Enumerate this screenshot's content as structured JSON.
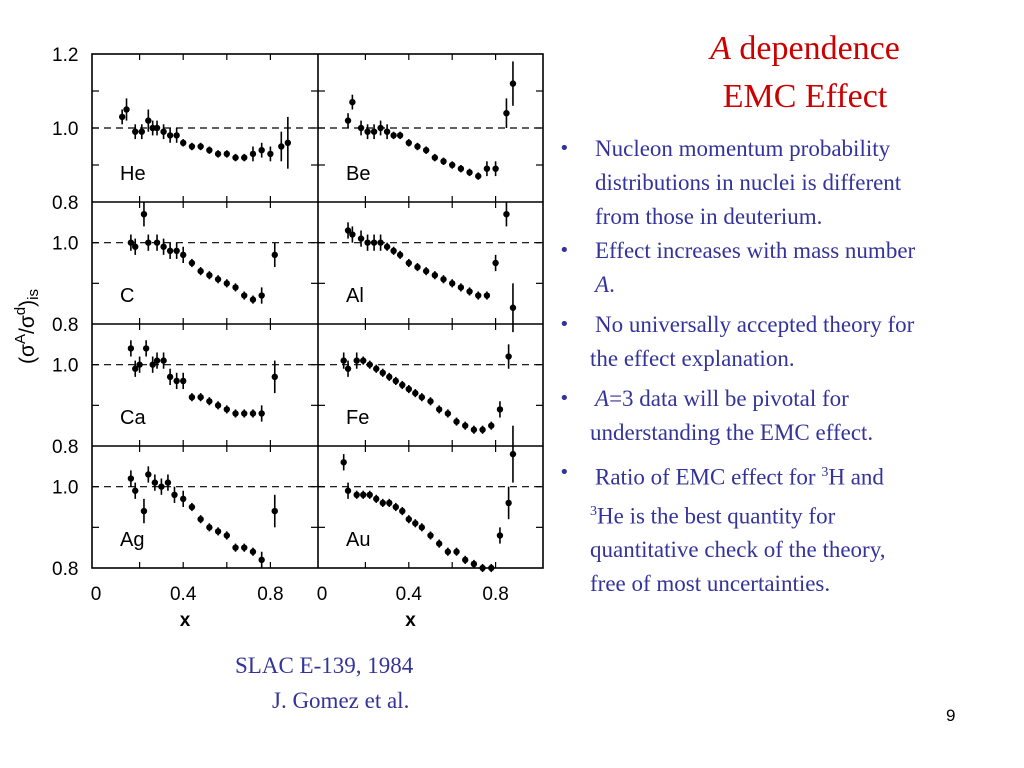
{
  "slide": {
    "title_italic": "A",
    "title_rest": " dependence",
    "title_line2": "EMC Effect",
    "page_number": "9",
    "caption": {
      "line1": "SLAC E-139, 1984",
      "line2": "J. Gomez et al."
    },
    "bullets": [
      {
        "lines": [
          "Nucleon momentum probability",
          "distributions in nuclei is different",
          "from those in deuterium."
        ]
      },
      {
        "lines": [
          "Effect increases with mass number"
        ],
        "cont_italic": "A",
        "cont_rest": "."
      },
      {
        "lines": [
          "No universally accepted theory for",
          "the effect explanation."
        ]
      },
      {
        "italic": "A",
        "rest": "=3 data will be pivotal for",
        "line2": "understanding the EMC effect."
      },
      {
        "line1a": "Ratio of EMC effect for ",
        "sup1": "3",
        "line1b": "H and",
        "sup2": "3",
        "line2b": "He is the best quantity for",
        "line3": "quantitative  check of the theory,",
        "line4": "free of most uncertainties."
      }
    ],
    "bullet_symbol": "•",
    "colors": {
      "title": "#cc0000",
      "text": "#33339a",
      "plot": "#000000"
    }
  },
  "chart_data": {
    "type": "scatter",
    "title": "",
    "ylabel": "(σA/σd)is",
    "xlabel": "x",
    "ylabel_parts": {
      "open": "(σ",
      "sup1": "A",
      "mid": "/σ",
      "sup2": "d",
      "close": ")",
      "sub": "is"
    },
    "xlim": [
      0,
      1.0
    ],
    "ylim": [
      0.8,
      1.2
    ],
    "x_ticks": [
      "0",
      "0.4",
      "0.8"
    ],
    "x_tick_values": [
      0,
      0.4,
      0.8
    ],
    "y_tick_labels_top": [
      "1.2",
      "1.0",
      "0.8"
    ],
    "y_tick_labels": [
      "1.0",
      "0.8"
    ],
    "reference_line": 1.0,
    "panels": [
      {
        "label": "He",
        "x": [
          0.12,
          0.14,
          0.18,
          0.21,
          0.24,
          0.26,
          0.28,
          0.31,
          0.34,
          0.37,
          0.4,
          0.44,
          0.48,
          0.52,
          0.56,
          0.6,
          0.64,
          0.68,
          0.72,
          0.76,
          0.8,
          0.85,
          0.88
        ],
        "y": [
          1.03,
          1.05,
          0.99,
          0.99,
          1.02,
          1.0,
          1.0,
          0.99,
          0.98,
          0.98,
          0.96,
          0.95,
          0.95,
          0.94,
          0.93,
          0.93,
          0.92,
          0.92,
          0.93,
          0.94,
          0.93,
          0.95,
          0.96
        ],
        "err": [
          0.02,
          0.03,
          0.02,
          0.02,
          0.03,
          0.02,
          0.02,
          0.02,
          0.02,
          0.02,
          0.01,
          0.01,
          0.01,
          0.01,
          0.01,
          0.01,
          0.01,
          0.01,
          0.02,
          0.02,
          0.02,
          0.04,
          0.07
        ]
      },
      {
        "label": "Be",
        "x": [
          0.12,
          0.14,
          0.18,
          0.21,
          0.24,
          0.27,
          0.3,
          0.33,
          0.36,
          0.4,
          0.44,
          0.48,
          0.52,
          0.56,
          0.6,
          0.64,
          0.68,
          0.72,
          0.76,
          0.8,
          0.85,
          0.88
        ],
        "y": [
          1.02,
          1.07,
          1.0,
          0.99,
          0.99,
          1.0,
          0.99,
          0.98,
          0.98,
          0.96,
          0.95,
          0.94,
          0.92,
          0.91,
          0.9,
          0.89,
          0.88,
          0.87,
          0.89,
          0.89,
          1.04,
          1.12
        ],
        "err": [
          0.02,
          0.02,
          0.02,
          0.02,
          0.02,
          0.02,
          0.02,
          0.01,
          0.01,
          0.01,
          0.01,
          0.01,
          0.01,
          0.01,
          0.01,
          0.01,
          0.01,
          0.01,
          0.02,
          0.02,
          0.04,
          0.06
        ]
      },
      {
        "label": "C",
        "x": [
          0.16,
          0.18,
          0.22,
          0.24,
          0.28,
          0.31,
          0.34,
          0.37,
          0.4,
          0.44,
          0.48,
          0.52,
          0.56,
          0.6,
          0.64,
          0.68,
          0.72,
          0.76,
          0.82
        ],
        "y": [
          1.0,
          0.99,
          1.07,
          1.0,
          1.0,
          0.99,
          0.98,
          0.98,
          0.97,
          0.95,
          0.93,
          0.92,
          0.91,
          0.9,
          0.89,
          0.87,
          0.86,
          0.87,
          0.97
        ],
        "err": [
          0.02,
          0.02,
          0.03,
          0.02,
          0.02,
          0.02,
          0.02,
          0.02,
          0.02,
          0.01,
          0.01,
          0.01,
          0.01,
          0.01,
          0.01,
          0.01,
          0.01,
          0.02,
          0.03
        ]
      },
      {
        "label": "Al",
        "x": [
          0.12,
          0.14,
          0.18,
          0.21,
          0.24,
          0.27,
          0.3,
          0.33,
          0.36,
          0.4,
          0.44,
          0.48,
          0.52,
          0.56,
          0.6,
          0.64,
          0.68,
          0.72,
          0.76,
          0.8,
          0.85
        ],
        "y": [
          1.03,
          1.02,
          1.01,
          1.0,
          1.0,
          1.0,
          0.99,
          0.98,
          0.97,
          0.95,
          0.94,
          0.93,
          0.92,
          0.91,
          0.9,
          0.89,
          0.88,
          0.87,
          0.87,
          0.95,
          1.07
        ],
        "err": [
          0.02,
          0.02,
          0.02,
          0.02,
          0.02,
          0.02,
          0.01,
          0.01,
          0.01,
          0.01,
          0.01,
          0.01,
          0.01,
          0.01,
          0.01,
          0.01,
          0.01,
          0.01,
          0.01,
          0.02,
          0.03
        ]
      },
      {
        "label": "Ca",
        "x": [
          0.16,
          0.18,
          0.2,
          0.23,
          0.26,
          0.28,
          0.31,
          0.34,
          0.37,
          0.4,
          0.44,
          0.48,
          0.52,
          0.56,
          0.6,
          0.64,
          0.68,
          0.72,
          0.76,
          0.82
        ],
        "y": [
          1.04,
          0.99,
          1.0,
          1.04,
          1.0,
          1.01,
          1.01,
          0.97,
          0.96,
          0.96,
          0.92,
          0.92,
          0.91,
          0.9,
          0.89,
          0.88,
          0.88,
          0.88,
          0.88,
          0.97
        ],
        "err": [
          0.02,
          0.02,
          0.02,
          0.02,
          0.02,
          0.02,
          0.02,
          0.02,
          0.02,
          0.02,
          0.01,
          0.01,
          0.01,
          0.01,
          0.01,
          0.01,
          0.01,
          0.01,
          0.02,
          0.04
        ]
      },
      {
        "label": "Fe",
        "x": [
          0.1,
          0.12,
          0.16,
          0.19,
          0.22,
          0.25,
          0.28,
          0.31,
          0.34,
          0.37,
          0.4,
          0.43,
          0.46,
          0.5,
          0.54,
          0.58,
          0.62,
          0.66,
          0.7,
          0.74,
          0.78,
          0.82,
          0.86,
          0.88
        ],
        "y": [
          1.01,
          0.99,
          1.01,
          1.01,
          1.0,
          0.99,
          0.98,
          0.97,
          0.96,
          0.95,
          0.94,
          0.93,
          0.92,
          0.91,
          0.89,
          0.88,
          0.86,
          0.85,
          0.84,
          0.84,
          0.85,
          0.89,
          1.02,
          1.14
        ],
        "err": [
          0.02,
          0.02,
          0.02,
          0.01,
          0.01,
          0.01,
          0.01,
          0.01,
          0.01,
          0.01,
          0.01,
          0.01,
          0.01,
          0.01,
          0.01,
          0.01,
          0.01,
          0.01,
          0.01,
          0.01,
          0.01,
          0.02,
          0.03,
          0.06
        ]
      },
      {
        "label": "Ag",
        "x": [
          0.16,
          0.18,
          0.22,
          0.24,
          0.27,
          0.3,
          0.33,
          0.36,
          0.4,
          0.44,
          0.48,
          0.52,
          0.56,
          0.6,
          0.64,
          0.68,
          0.72,
          0.76,
          0.82
        ],
        "y": [
          1.02,
          0.99,
          0.94,
          1.03,
          1.01,
          1.0,
          1.01,
          0.98,
          0.97,
          0.95,
          0.92,
          0.9,
          0.89,
          0.88,
          0.85,
          0.85,
          0.84,
          0.82,
          0.94
        ],
        "err": [
          0.02,
          0.02,
          0.03,
          0.02,
          0.02,
          0.02,
          0.02,
          0.02,
          0.02,
          0.01,
          0.01,
          0.01,
          0.01,
          0.01,
          0.01,
          0.01,
          0.01,
          0.02,
          0.04
        ]
      },
      {
        "label": "Au",
        "x": [
          0.1,
          0.12,
          0.16,
          0.19,
          0.22,
          0.25,
          0.28,
          0.31,
          0.34,
          0.37,
          0.4,
          0.43,
          0.46,
          0.5,
          0.54,
          0.58,
          0.62,
          0.66,
          0.7,
          0.74,
          0.78,
          0.82,
          0.86,
          0.88
        ],
        "y": [
          1.06,
          0.99,
          0.98,
          0.98,
          0.98,
          0.97,
          0.96,
          0.96,
          0.95,
          0.94,
          0.92,
          0.91,
          0.9,
          0.88,
          0.86,
          0.84,
          0.84,
          0.82,
          0.81,
          0.8,
          0.8,
          0.88,
          0.96,
          1.08
        ],
        "err": [
          0.02,
          0.02,
          0.01,
          0.01,
          0.01,
          0.01,
          0.01,
          0.01,
          0.01,
          0.01,
          0.01,
          0.01,
          0.01,
          0.01,
          0.01,
          0.01,
          0.01,
          0.01,
          0.01,
          0.01,
          0.01,
          0.02,
          0.04,
          0.07
        ]
      }
    ]
  }
}
